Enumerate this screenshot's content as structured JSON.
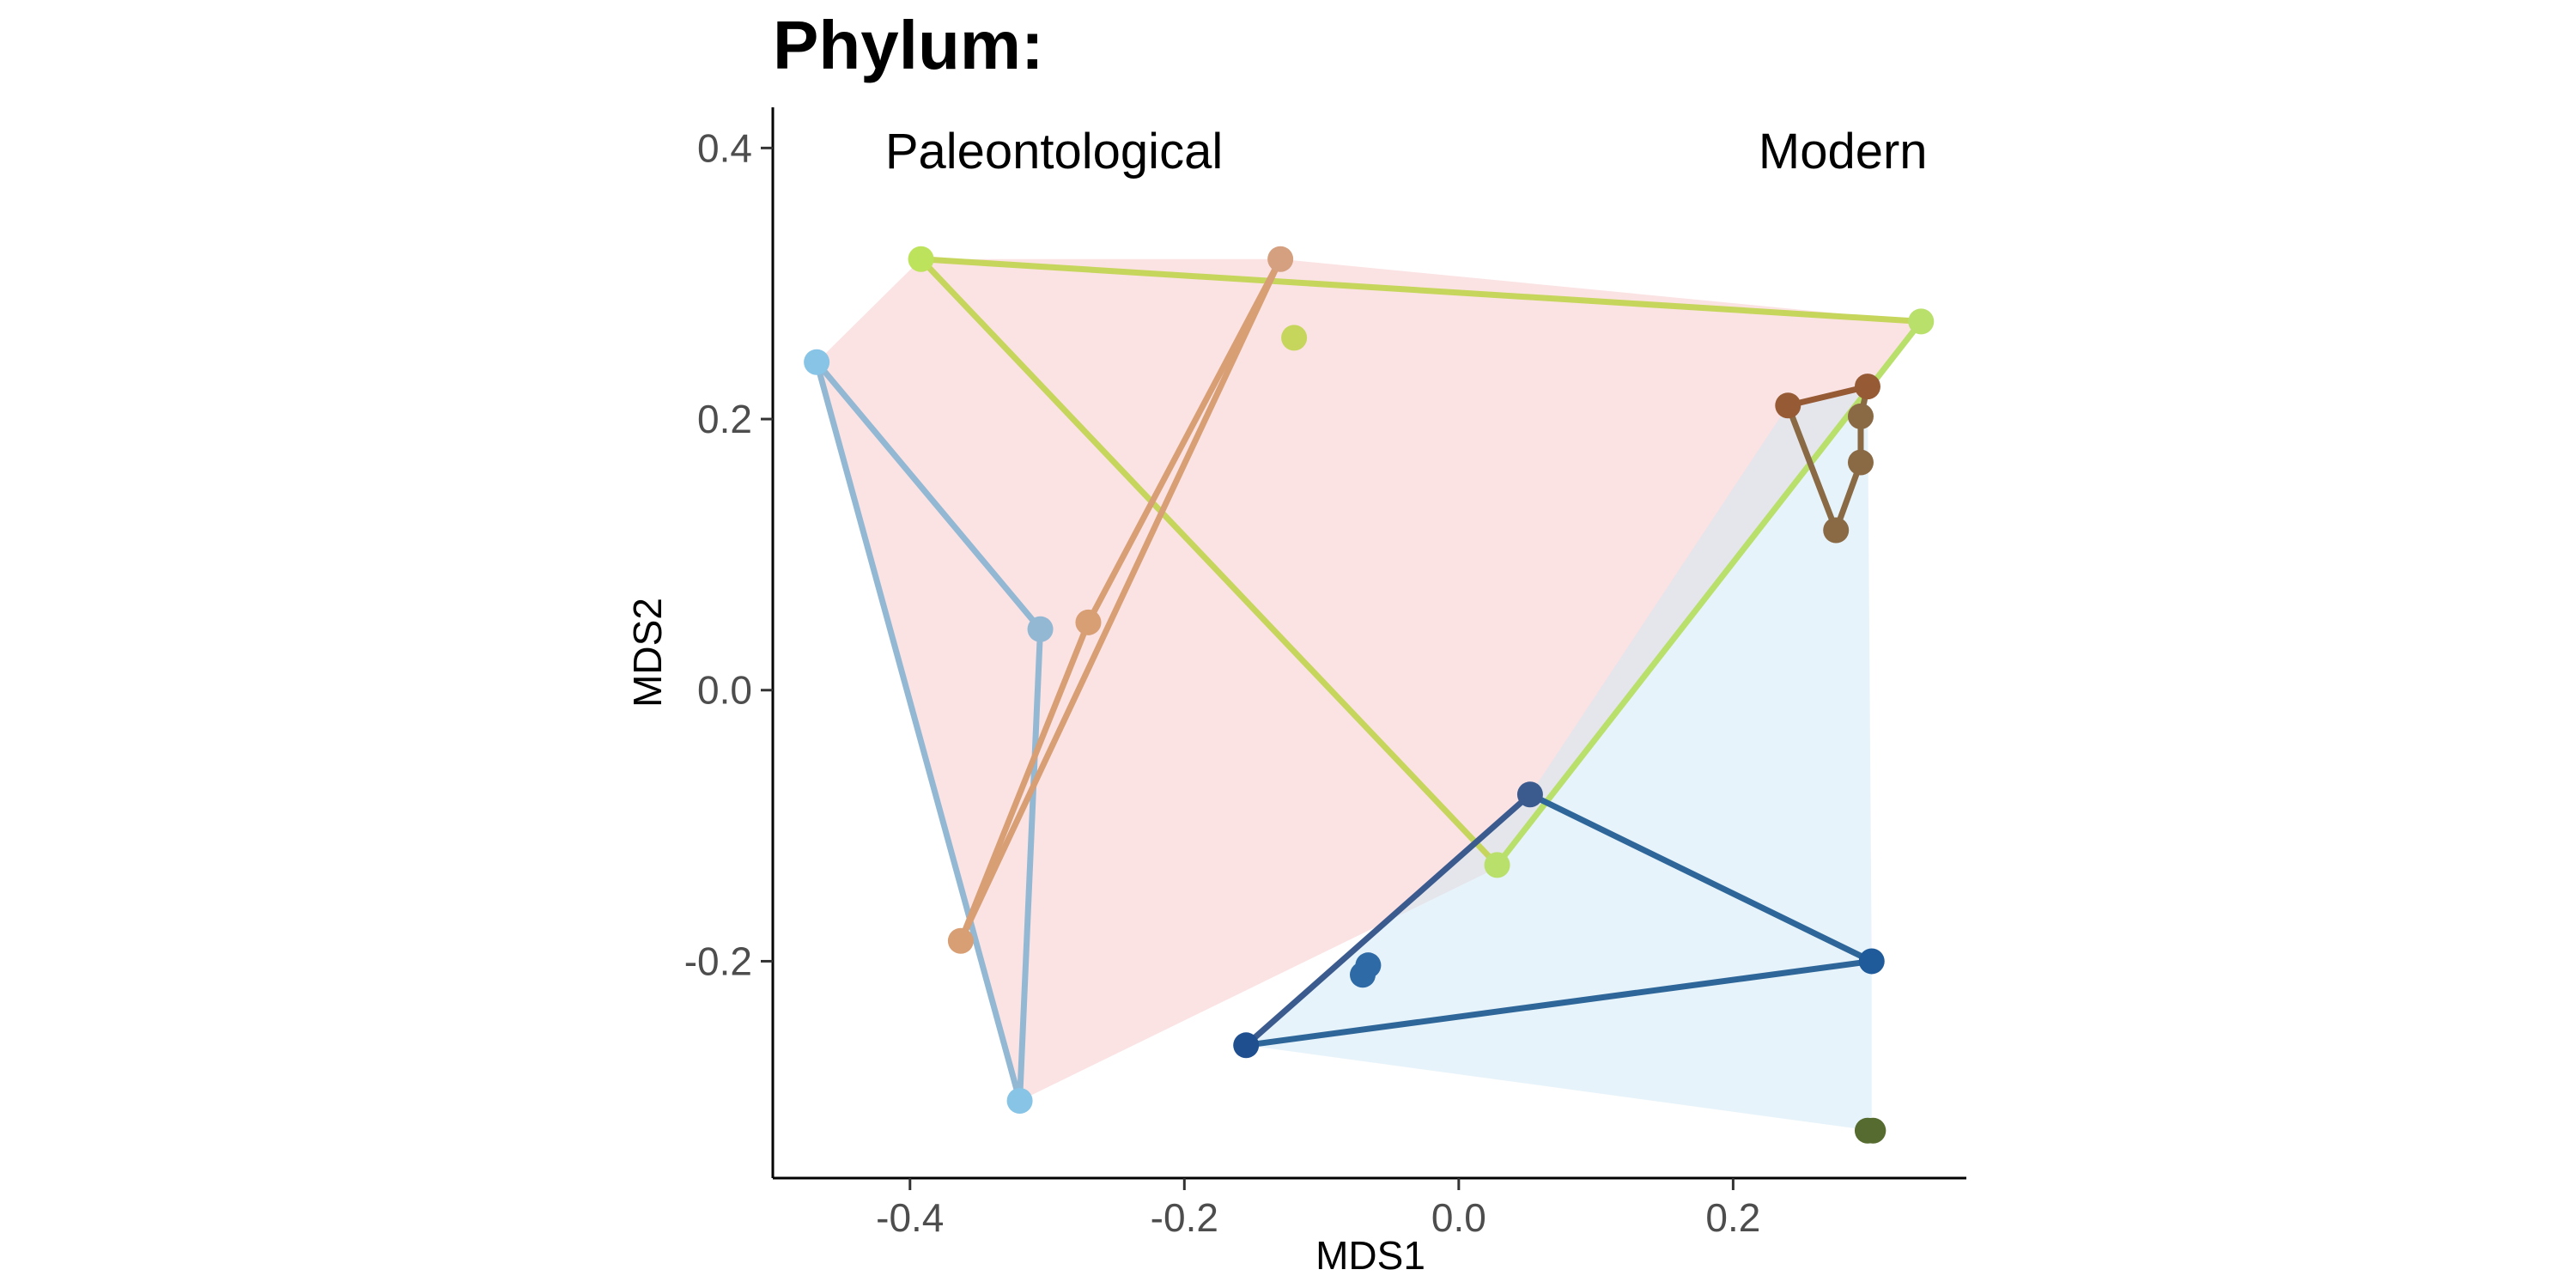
{
  "chart_data": {
    "type": "scatter",
    "title": "Phylum:",
    "xlabel": "MDS1",
    "ylabel": "MDS2",
    "xlim": [
      -0.5,
      0.37
    ],
    "ylim": [
      -0.36,
      0.43
    ],
    "x_ticks": [
      -0.4,
      -0.2,
      0.0,
      0.2
    ],
    "x_tick_labels": [
      "-0.4",
      "-0.2",
      "0.0",
      "0.2"
    ],
    "y_ticks": [
      -0.2,
      0.0,
      0.2,
      0.4
    ],
    "y_tick_labels": [
      "-0.2",
      "0.0",
      "0.2",
      "0.4"
    ],
    "grid": false,
    "annotations": [
      {
        "text": "Paleontological",
        "x": -0.295,
        "y": 0.385
      },
      {
        "text": "Modern",
        "x": 0.28,
        "y": 0.385
      }
    ],
    "hulls": [
      {
        "color": "#f8c6c8",
        "opacity": 0.5,
        "points": [
          [
            -0.468,
            0.242
          ],
          [
            -0.392,
            0.318
          ],
          [
            -0.13,
            0.318
          ],
          [
            0.337,
            0.272
          ],
          [
            0.03,
            -0.13
          ],
          [
            -0.32,
            -0.303
          ]
        ]
      },
      {
        "color": "#cfe8f5",
        "opacity": 0.5,
        "points": [
          [
            -0.155,
            -0.262
          ],
          [
            0.052,
            -0.077
          ],
          [
            0.24,
            0.21
          ],
          [
            0.298,
            0.224
          ],
          [
            0.301,
            -0.2
          ],
          [
            0.301,
            -0.325
          ]
        ]
      }
    ],
    "segments": [
      {
        "color": "#c6d65c",
        "points": [
          [
            -0.392,
            0.318
          ],
          [
            0.337,
            0.272
          ]
        ]
      },
      {
        "color": "#c6d65c",
        "points": [
          [
            -0.392,
            0.318
          ],
          [
            0.028,
            -0.129
          ]
        ]
      },
      {
        "color": "#b9e06a",
        "points": [
          [
            0.028,
            -0.129
          ],
          [
            0.337,
            0.272
          ]
        ]
      },
      {
        "color": "#92b8d4",
        "points": [
          [
            -0.468,
            0.242
          ],
          [
            -0.305,
            0.045
          ]
        ]
      },
      {
        "color": "#92b8d4",
        "points": [
          [
            -0.305,
            0.045
          ],
          [
            -0.32,
            -0.303
          ]
        ]
      },
      {
        "color": "#92b8d4",
        "points": [
          [
            -0.468,
            0.242
          ],
          [
            -0.32,
            -0.303
          ]
        ]
      },
      {
        "color": "#d89e74",
        "points": [
          [
            -0.363,
            -0.185
          ],
          [
            -0.13,
            0.318
          ]
        ]
      },
      {
        "color": "#d89e74",
        "points": [
          [
            -0.363,
            -0.185
          ],
          [
            -0.27,
            0.05
          ]
        ]
      },
      {
        "color": "#d89e74",
        "points": [
          [
            -0.27,
            0.05
          ],
          [
            -0.13,
            0.318
          ]
        ]
      },
      {
        "color": "#3b5b8f",
        "points": [
          [
            -0.155,
            -0.262
          ],
          [
            0.052,
            -0.077
          ]
        ]
      },
      {
        "color": "#2e6699",
        "points": [
          [
            0.052,
            -0.077
          ],
          [
            0.301,
            -0.2
          ]
        ]
      },
      {
        "color": "#2e6699",
        "points": [
          [
            -0.155,
            -0.262
          ],
          [
            0.301,
            -0.2
          ]
        ]
      },
      {
        "color": "#965a34",
        "points": [
          [
            0.24,
            0.21
          ],
          [
            0.298,
            0.224
          ]
        ]
      },
      {
        "color": "#8a6a45",
        "points": [
          [
            0.24,
            0.21
          ],
          [
            0.275,
            0.118
          ]
        ]
      },
      {
        "color": "#8a6a45",
        "points": [
          [
            0.275,
            0.118
          ],
          [
            0.293,
            0.168
          ]
        ]
      },
      {
        "color": "#8a6a45",
        "points": [
          [
            0.293,
            0.168
          ],
          [
            0.293,
            0.202
          ]
        ]
      },
      {
        "color": "#8a6a45",
        "points": [
          [
            0.293,
            0.202
          ],
          [
            0.298,
            0.224
          ]
        ]
      }
    ],
    "points": [
      {
        "x": -0.392,
        "y": 0.318,
        "color": "#bde35c"
      },
      {
        "x": 0.337,
        "y": 0.272,
        "color": "#b9e06a"
      },
      {
        "x": 0.028,
        "y": -0.129,
        "color": "#b9e06a"
      },
      {
        "x": -0.12,
        "y": 0.26,
        "color": "#c6d65c"
      },
      {
        "x": -0.468,
        "y": 0.242,
        "color": "#87c4e5"
      },
      {
        "x": -0.305,
        "y": 0.045,
        "color": "#92b8d4"
      },
      {
        "x": -0.32,
        "y": -0.303,
        "color": "#87c4e5"
      },
      {
        "x": -0.13,
        "y": 0.318,
        "color": "#d4a07f"
      },
      {
        "x": -0.27,
        "y": 0.05,
        "color": "#d89e74"
      },
      {
        "x": -0.363,
        "y": -0.185,
        "color": "#d89e74"
      },
      {
        "x": -0.155,
        "y": -0.262,
        "color": "#1f4f8f"
      },
      {
        "x": 0.052,
        "y": -0.077,
        "color": "#3b5b8f"
      },
      {
        "x": 0.301,
        "y": -0.2,
        "color": "#1f5b9a"
      },
      {
        "x": -0.066,
        "y": -0.203,
        "color": "#2e6aa6"
      },
      {
        "x": -0.07,
        "y": -0.21,
        "color": "#2e6aa6"
      },
      {
        "x": 0.24,
        "y": 0.21,
        "color": "#965a34"
      },
      {
        "x": 0.298,
        "y": 0.224,
        "color": "#965a34"
      },
      {
        "x": 0.293,
        "y": 0.202,
        "color": "#8a6a45"
      },
      {
        "x": 0.293,
        "y": 0.168,
        "color": "#8a6a45"
      },
      {
        "x": 0.275,
        "y": 0.118,
        "color": "#8a6a45"
      },
      {
        "x": 0.298,
        "y": -0.325,
        "color": "#556b2f"
      },
      {
        "x": 0.302,
        "y": -0.325,
        "color": "#556b2f"
      }
    ]
  }
}
